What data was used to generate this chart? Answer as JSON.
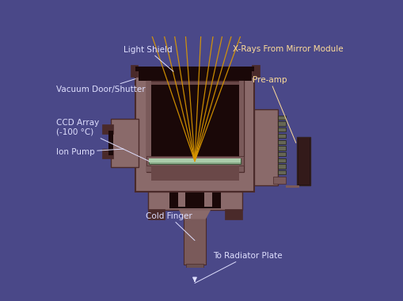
{
  "bg_color": "#4a4888",
  "body_main": "#8a6a6a",
  "body_dark": "#4a2a2a",
  "body_mid": "#7a5a5a",
  "body_inner_bg": "#6a4848",
  "inner_dark": "#1a0808",
  "ccd_color": "#88aa88",
  "ccd_bright": "#aaccaa",
  "xray_color": "#dd9900",
  "rib_color": "#666655",
  "preamp_body": "#554444",
  "preamp_dark": "#221111",
  "white_label": "#e0e0ff",
  "yellow_label": "#ffdd99",
  "labels": {
    "light_shield": "Light Shield",
    "vacuum_door": "Vacuum Door/Shutter",
    "ccd_array": "CCD Array\n(-100 °C)",
    "ion_pump": "Ion Pump",
    "pre_amp": "Pre-amp",
    "xrays": "X-Rays From Mirror Module",
    "cold_finger": "Cold Finger",
    "to_radiator": "To Radiator Plate"
  }
}
